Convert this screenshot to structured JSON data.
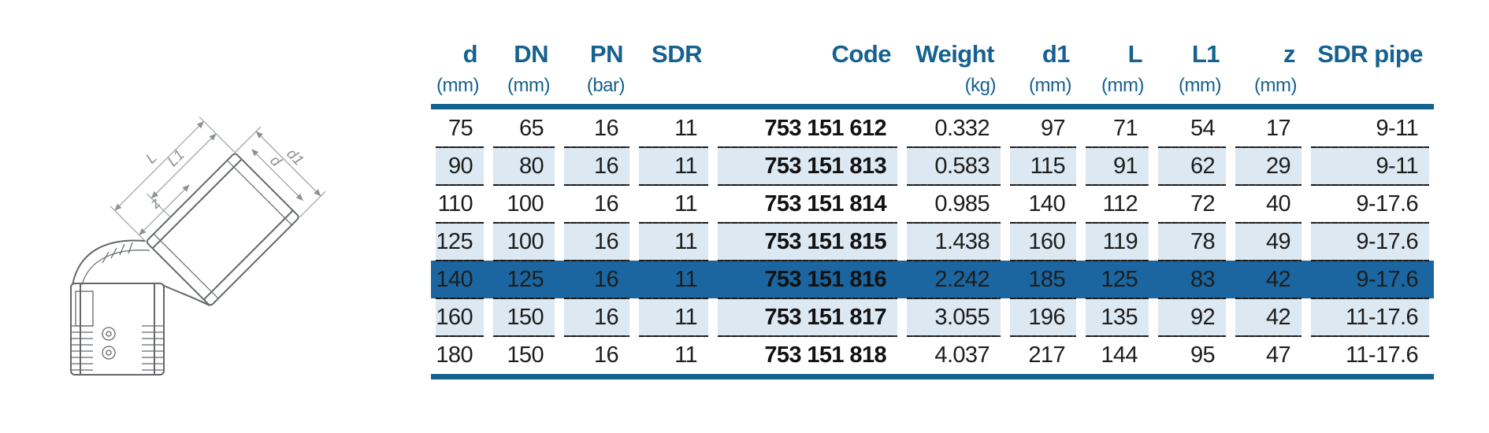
{
  "page": {
    "background": "#ffffff"
  },
  "colors": {
    "header_blue": "#15618f",
    "rule_blue": "#15618f",
    "row_shade": "#dce8f2",
    "highlight_row_blue": "#1b66a0",
    "data_text": "#1d1d1b",
    "drawing_stroke": "#63676c",
    "dimension_gray": "#9aa0a6"
  },
  "drawing": {
    "description": "45-degree electrofusion elbow fitting line drawing",
    "labels": {
      "L": "L",
      "L1": "L1",
      "z": "z",
      "d1": "d1",
      "d": "d"
    }
  },
  "table": {
    "columns": [
      {
        "key": "d",
        "label": "d",
        "unit": "(mm)"
      },
      {
        "key": "dn",
        "label": "DN",
        "unit": "(mm)"
      },
      {
        "key": "pn",
        "label": "PN",
        "unit": "(bar)"
      },
      {
        "key": "sdr",
        "label": "SDR",
        "unit": ""
      },
      {
        "key": "code",
        "label": "Code",
        "unit": ""
      },
      {
        "key": "weight",
        "label": "Weight",
        "unit": "(kg)"
      },
      {
        "key": "d1",
        "label": "d1",
        "unit": "(mm)"
      },
      {
        "key": "l",
        "label": "L",
        "unit": "(mm)"
      },
      {
        "key": "l1",
        "label": "L1",
        "unit": "(mm)"
      },
      {
        "key": "z",
        "label": "z",
        "unit": "(mm)"
      },
      {
        "key": "sdr_pipe",
        "label": "SDR pipe",
        "unit": ""
      }
    ],
    "rows": [
      {
        "d": "75",
        "dn": "65",
        "pn": "16",
        "sdr": "11",
        "code": "753 151 612",
        "weight": "0.332",
        "d1": "97",
        "l": "71",
        "l1": "54",
        "z": "17",
        "sdr_pipe": "9-11",
        "shaded": false,
        "highlight": false
      },
      {
        "d": "90",
        "dn": "80",
        "pn": "16",
        "sdr": "11",
        "code": "753 151 813",
        "weight": "0.583",
        "d1": "115",
        "l": "91",
        "l1": "62",
        "z": "29",
        "sdr_pipe": "9-11",
        "shaded": true,
        "highlight": false
      },
      {
        "d": "110",
        "dn": "100",
        "pn": "16",
        "sdr": "11",
        "code": "753 151 814",
        "weight": "0.985",
        "d1": "140",
        "l": "112",
        "l1": "72",
        "z": "40",
        "sdr_pipe": "9-17.6",
        "shaded": false,
        "highlight": false
      },
      {
        "d": "125",
        "dn": "100",
        "pn": "16",
        "sdr": "11",
        "code": "753 151 815",
        "weight": "1.438",
        "d1": "160",
        "l": "119",
        "l1": "78",
        "z": "49",
        "sdr_pipe": "9-17.6",
        "shaded": true,
        "highlight": false
      },
      {
        "d": "140",
        "dn": "125",
        "pn": "16",
        "sdr": "11",
        "code": "753 151 816",
        "weight": "2.242",
        "d1": "185",
        "l": "125",
        "l1": "83",
        "z": "42",
        "sdr_pipe": "9-17.6",
        "shaded": false,
        "highlight": true
      },
      {
        "d": "160",
        "dn": "150",
        "pn": "16",
        "sdr": "11",
        "code": "753 151 817",
        "weight": "3.055",
        "d1": "196",
        "l": "135",
        "l1": "92",
        "z": "42",
        "sdr_pipe": "11-17.6",
        "shaded": true,
        "highlight": false
      },
      {
        "d": "180",
        "dn": "150",
        "pn": "16",
        "sdr": "11",
        "code": "753 151 818",
        "weight": "4.037",
        "d1": "217",
        "l": "144",
        "l1": "95",
        "z": "47",
        "sdr_pipe": "11-17.6",
        "shaded": false,
        "highlight": false
      }
    ]
  }
}
